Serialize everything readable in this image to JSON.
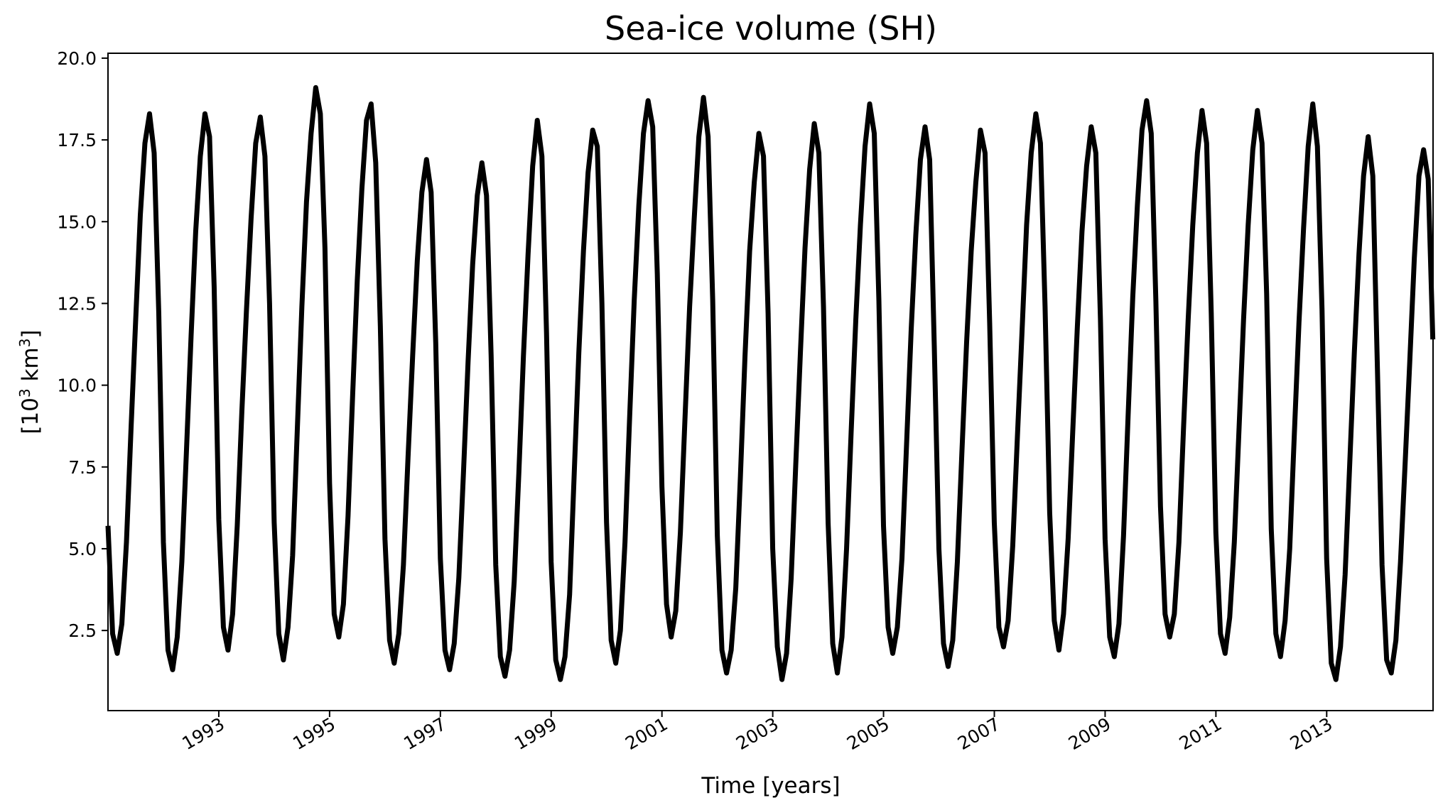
{
  "chart_data": {
    "type": "line",
    "title": "Sea-ice volume (SH)",
    "xlabel": "Time [years]",
    "ylabel_parts": [
      "[10",
      "3",
      " km",
      "3",
      "]"
    ],
    "xlim": [
      1991.0,
      2014.92
    ],
    "ylim": [
      0.05,
      20.15
    ],
    "yticks": [
      2.5,
      5.0,
      7.5,
      10.0,
      12.5,
      15.0,
      17.5,
      20.0
    ],
    "ytick_labels": [
      "2.5",
      "5.0",
      "7.5",
      "10.0",
      "12.5",
      "15.0",
      "17.5",
      "20.0"
    ],
    "xticks": [
      1993,
      1995,
      1997,
      1999,
      2001,
      2003,
      2005,
      2007,
      2009,
      2011,
      2013
    ],
    "xtick_labels": [
      "1993",
      "1995",
      "1997",
      "1999",
      "2001",
      "2003",
      "2005",
      "2007",
      "2009",
      "2011",
      "2013"
    ],
    "grid": false,
    "series": [
      {
        "color": "#000000",
        "x_start": 1991.0,
        "x_step_years": 0.08333,
        "values": [
          5.7,
          2.4,
          1.8,
          2.7,
          5.2,
          8.7,
          12.0,
          15.2,
          17.4,
          18.3,
          17.1,
          12.2,
          5.2,
          1.9,
          1.3,
          2.3,
          4.6,
          8.0,
          11.5,
          14.7,
          17.0,
          18.3,
          17.6,
          13.0,
          5.9,
          2.6,
          1.9,
          3.0,
          5.7,
          9.2,
          12.3,
          15.1,
          17.4,
          18.2,
          17.0,
          12.5,
          5.8,
          2.4,
          1.6,
          2.6,
          4.8,
          8.6,
          12.4,
          15.6,
          17.7,
          19.1,
          18.3,
          14.2,
          7.0,
          3.0,
          2.3,
          3.3,
          6.0,
          9.7,
          13.2,
          16.0,
          18.1,
          18.6,
          16.8,
          11.8,
          5.3,
          2.2,
          1.5,
          2.4,
          4.5,
          7.8,
          10.9,
          13.8,
          15.9,
          16.9,
          15.9,
          11.3,
          4.7,
          1.9,
          1.3,
          2.1,
          4.1,
          7.3,
          10.7,
          13.7,
          15.8,
          16.8,
          15.8,
          10.9,
          4.5,
          1.7,
          1.1,
          1.9,
          4.0,
          7.3,
          10.9,
          14.0,
          16.7,
          18.1,
          17.0,
          11.6,
          4.6,
          1.6,
          1.0,
          1.7,
          3.6,
          7.3,
          11.0,
          14.1,
          16.5,
          17.8,
          17.3,
          12.5,
          5.8,
          2.2,
          1.5,
          2.5,
          5.2,
          9.0,
          12.6,
          15.5,
          17.7,
          18.7,
          17.9,
          13.4,
          6.9,
          3.3,
          2.3,
          3.1,
          5.5,
          9.0,
          12.4,
          15.1,
          17.6,
          18.8,
          17.6,
          12.6,
          5.4,
          1.9,
          1.2,
          1.9,
          3.8,
          7.2,
          10.9,
          14.1,
          16.2,
          17.7,
          17.0,
          12.2,
          5.0,
          2.0,
          1.0,
          1.8,
          4.1,
          7.6,
          11.0,
          14.2,
          16.6,
          18.0,
          17.1,
          12.4,
          5.8,
          2.1,
          1.2,
          2.3,
          5.0,
          8.6,
          12.0,
          14.9,
          17.3,
          18.6,
          17.7,
          12.6,
          5.7,
          2.6,
          1.8,
          2.6,
          4.7,
          8.2,
          11.7,
          14.6,
          16.9,
          17.9,
          16.9,
          11.2,
          5.0,
          2.1,
          1.4,
          2.2,
          4.6,
          8.0,
          11.3,
          14.1,
          16.2,
          17.8,
          17.1,
          11.9,
          5.8,
          2.6,
          2.0,
          2.8,
          5.1,
          8.4,
          11.6,
          14.9,
          17.1,
          18.3,
          17.4,
          12.4,
          6.1,
          2.8,
          1.9,
          3.0,
          5.3,
          8.6,
          11.8,
          14.7,
          16.7,
          17.9,
          17.1,
          12.0,
          5.3,
          2.3,
          1.7,
          2.7,
          5.4,
          9.1,
          12.7,
          15.5,
          17.8,
          18.7,
          17.7,
          12.6,
          6.3,
          3.0,
          2.3,
          3.0,
          5.2,
          8.7,
          12.0,
          14.9,
          17.1,
          18.4,
          17.4,
          12.2,
          5.5,
          2.4,
          1.8,
          2.9,
          5.2,
          8.6,
          12.0,
          14.9,
          17.2,
          18.4,
          17.4,
          12.8,
          5.6,
          2.4,
          1.7,
          2.8,
          5.0,
          8.5,
          11.9,
          14.8,
          17.3,
          18.6,
          17.3,
          12.3,
          4.7,
          1.5,
          1.0,
          2.0,
          4.2,
          7.6,
          11.0,
          14.0,
          16.4,
          17.6,
          16.4,
          10.5,
          4.5,
          1.6,
          1.2,
          2.2,
          4.6,
          7.6,
          10.7,
          13.9,
          16.4,
          17.2,
          16.3,
          11.4
        ]
      }
    ]
  }
}
